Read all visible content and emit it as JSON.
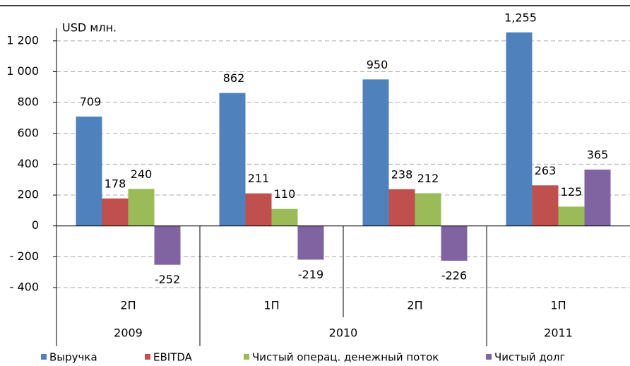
{
  "chart_data": {
    "type": "bar",
    "axis_label": "USD млн.",
    "categories": [
      "2П",
      "1П",
      "2П",
      "1П"
    ],
    "category_groups": [
      {
        "label": "2009",
        "span": 1
      },
      {
        "label": "2010",
        "span": 2
      },
      {
        "label": "2011",
        "span": 1
      }
    ],
    "series": [
      {
        "name": "Выручка",
        "color": "#4f81bd",
        "values": [
          709,
          862,
          950,
          1255
        ],
        "value_labels": [
          "709",
          "862",
          "950",
          "1,255"
        ]
      },
      {
        "name": "EBITDA",
        "color": "#c0504d",
        "values": [
          178,
          211,
          238,
          263
        ]
      },
      {
        "name": "Чистый операц. денежный поток",
        "color": "#9bbb59",
        "values": [
          240,
          110,
          212,
          125
        ]
      },
      {
        "name": "Чистый долг",
        "color": "#8064a2",
        "values": [
          -252,
          -219,
          -226,
          365
        ]
      }
    ],
    "ylim": [
      -400,
      1300
    ],
    "yticks": [
      {
        "value": -400,
        "label": "- 400"
      },
      {
        "value": -200,
        "label": "- 200"
      },
      0,
      200,
      400,
      600,
      800,
      {
        "value": 1000,
        "label": "1 000"
      },
      {
        "value": 1200,
        "label": "1 200"
      }
    ],
    "grid": true,
    "legend": "bottom"
  }
}
